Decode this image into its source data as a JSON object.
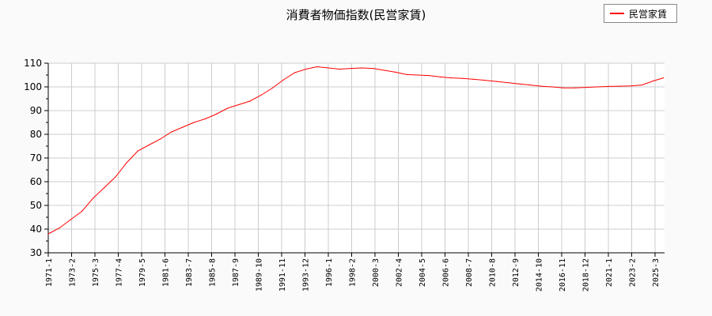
{
  "chart_data": {
    "type": "line",
    "title": "消費者物価指数(民営家賃)",
    "xlabel": "",
    "ylabel": "",
    "ylim": [
      30,
      110
    ],
    "yticks": [
      30,
      40,
      50,
      60,
      70,
      80,
      90,
      100,
      110
    ],
    "xtick_labels": [
      "1971-1",
      "1973-2",
      "1975-3",
      "1977-4",
      "1979-5",
      "1981-6",
      "1983-7",
      "1985-8",
      "1987-9",
      "1989-10",
      "1991-11",
      "1993-12",
      "1996-1",
      "1998-2",
      "2000-3",
      "2002-4",
      "2004-5",
      "2006-6",
      "2008-7",
      "2010-8",
      "2012-9",
      "2014-10",
      "2016-11",
      "2018-12",
      "2021-1",
      "2023-2",
      "2025-3"
    ],
    "grid": true,
    "legend_position": "top-right",
    "series": [
      {
        "name": "民営家賃",
        "color": "#ff0000",
        "x": [
          "1971-1",
          "1972-1",
          "1973-1",
          "1974-1",
          "1975-1",
          "1976-1",
          "1977-1",
          "1978-1",
          "1979-1",
          "1980-1",
          "1981-1",
          "1982-1",
          "1983-1",
          "1984-1",
          "1985-1",
          "1986-1",
          "1987-1",
          "1988-1",
          "1989-1",
          "1990-1",
          "1991-1",
          "1992-1",
          "1993-1",
          "1994-1",
          "1995-1",
          "1996-1",
          "1997-1",
          "1998-1",
          "1999-1",
          "2000-1",
          "2001-1",
          "2002-1",
          "2003-1",
          "2004-1",
          "2005-1",
          "2006-1",
          "2007-1",
          "2008-1",
          "2009-1",
          "2010-1",
          "2011-1",
          "2012-1",
          "2013-1",
          "2014-1",
          "2015-1",
          "2016-1",
          "2017-1",
          "2018-1",
          "2019-1",
          "2020-1",
          "2021-1",
          "2022-1",
          "2023-1",
          "2024-1",
          "2025-1",
          "2025-12"
        ],
        "values": [
          38,
          40.5,
          44,
          47.5,
          53,
          57.5,
          62,
          68,
          73,
          75.5,
          78,
          81,
          83,
          85,
          86.5,
          88.5,
          91,
          92.5,
          94,
          96.5,
          99.5,
          103,
          106,
          107.5,
          108.5,
          108,
          107.5,
          107.8,
          108,
          107.8,
          107,
          106.2,
          105.2,
          105,
          104.8,
          104.2,
          103.8,
          103.6,
          103.2,
          102.8,
          102.3,
          101.8,
          101.3,
          100.8,
          100.3,
          100,
          99.6,
          99.6,
          99.8,
          100,
          100.2,
          100.3,
          100.4,
          100.8,
          102.5,
          103.8
        ]
      }
    ]
  }
}
